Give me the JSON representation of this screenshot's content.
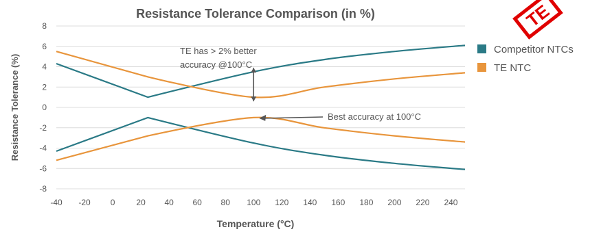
{
  "chart_data": {
    "type": "line",
    "title": "Resistance Tolerance Comparison (in %)",
    "xlabel": "Temperature (°C)",
    "ylabel": "Resistance Tolerance (%)",
    "xlim": [
      -40,
      250
    ],
    "ylim": [
      -8,
      8
    ],
    "x_ticks": [
      -40,
      -20,
      0,
      20,
      40,
      60,
      80,
      100,
      120,
      140,
      160,
      180,
      200,
      220,
      240
    ],
    "y_ticks": [
      -8,
      -6,
      -4,
      -2,
      0,
      2,
      4,
      6,
      8
    ],
    "grid": "horizontal",
    "legend": {
      "position": "right"
    },
    "series": [
      {
        "name": "Competitor NTCs",
        "color": "#2a7a86",
        "upper": {
          "x": [
            -40,
            25,
            100,
            150,
            200,
            250
          ],
          "y": [
            4.3,
            1.0,
            3.5,
            4.7,
            5.5,
            6.1
          ]
        },
        "lower": {
          "x": [
            -40,
            25,
            100,
            150,
            200,
            250
          ],
          "y": [
            -4.3,
            -1.0,
            -3.5,
            -4.7,
            -5.5,
            -6.1
          ]
        }
      },
      {
        "name": "TE NTC",
        "color": "#e8953c",
        "upper": {
          "x": [
            -40,
            25,
            100,
            150,
            200,
            250
          ],
          "y": [
            5.5,
            3.0,
            1.0,
            2.0,
            2.8,
            3.4
          ]
        },
        "lower": {
          "x": [
            -40,
            25,
            100,
            150,
            200,
            250
          ],
          "y": [
            -5.2,
            -2.8,
            -1.0,
            -2.0,
            -2.8,
            -3.4
          ]
        }
      }
    ],
    "annotations": [
      {
        "id": "gap",
        "text_lines": [
          "TE has > 2% better",
          "accuracy @100°C"
        ],
        "x": 100,
        "y_from": 1.0,
        "y_to": 3.5
      },
      {
        "id": "best",
        "text": "Best accuracy at 100°C",
        "x": 100,
        "y": -1.0
      }
    ]
  },
  "watermark": {
    "text": "TE"
  }
}
